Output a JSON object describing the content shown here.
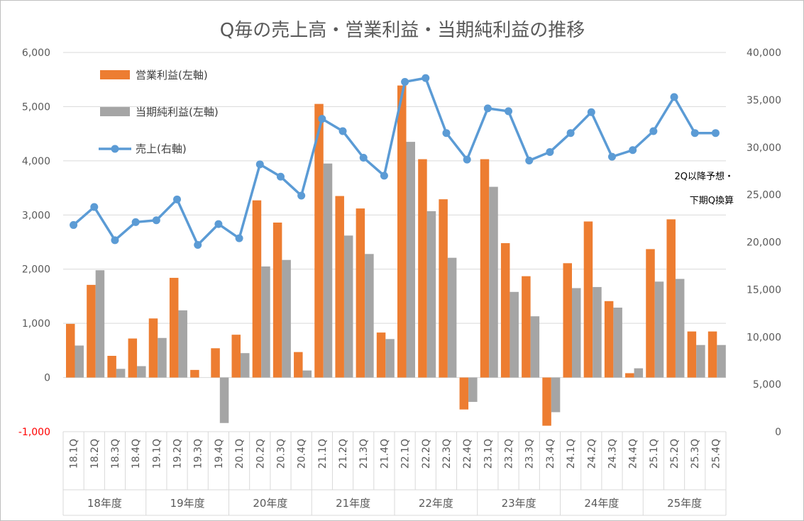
{
  "chart_data": {
    "type": "bar",
    "title": "Q毎の売上高・営業利益・当期純利益の推移",
    "categories": [
      "18.1Q",
      "18.2Q",
      "18.3Q",
      "18.4Q",
      "19.1Q",
      "19.2Q",
      "19.3Q",
      "19.4Q",
      "20.1Q",
      "20.2Q",
      "20.3Q",
      "20.4Q",
      "21.1Q",
      "21.2Q",
      "21.3Q",
      "21.4Q",
      "22.1Q",
      "22.2Q",
      "22.3Q",
      "22.4Q",
      "23.1Q",
      "23.2Q",
      "23.3Q",
      "23.4Q",
      "24.1Q",
      "24.2Q",
      "24.3Q",
      "24.4Q",
      "25.1Q",
      "25.2Q",
      "25.3Q",
      "25.4Q"
    ],
    "year_groups": [
      {
        "label": "18年度",
        "count": 4
      },
      {
        "label": "19年度",
        "count": 4
      },
      {
        "label": "20年度",
        "count": 4
      },
      {
        "label": "21年度",
        "count": 4
      },
      {
        "label": "22年度",
        "count": 4
      },
      {
        "label": "23年度",
        "count": 4
      },
      {
        "label": "24年度",
        "count": 4
      },
      {
        "label": "25年度",
        "count": 4
      }
    ],
    "series": [
      {
        "name": "営業利益(左軸)",
        "type": "bar",
        "axis": "left",
        "color": "#ed7d31",
        "values": [
          990,
          1710,
          400,
          720,
          1090,
          1840,
          140,
          540,
          790,
          3270,
          2860,
          470,
          5050,
          3350,
          3120,
          830,
          5390,
          4030,
          3290,
          -590,
          4030,
          2480,
          1870,
          -890,
          2110,
          2880,
          1410,
          80,
          2370,
          2920,
          850,
          850
        ]
      },
      {
        "name": "当期純利益(左軸)",
        "type": "bar",
        "axis": "left",
        "color": "#a5a5a5",
        "values": [
          590,
          1980,
          160,
          210,
          730,
          1240,
          0,
          -840,
          450,
          2050,
          2170,
          130,
          3950,
          2620,
          2280,
          710,
          4350,
          3070,
          2210,
          -450,
          3520,
          1580,
          1130,
          -640,
          1650,
          1670,
          1290,
          170,
          1770,
          1820,
          600,
          600
        ]
      },
      {
        "name": "売上(右軸)",
        "type": "line",
        "axis": "right",
        "color": "#5b9bd5",
        "values": [
          21800,
          23700,
          20200,
          22100,
          22300,
          24500,
          19700,
          21900,
          20400,
          28200,
          26900,
          24900,
          33000,
          31700,
          28900,
          27000,
          36900,
          37300,
          31500,
          28700,
          34100,
          33800,
          28600,
          29500,
          31500,
          33700,
          29000,
          29700,
          31700,
          35300,
          31500,
          31500
        ]
      }
    ],
    "left_axis": {
      "min": -1000,
      "max": 6000,
      "step": 1000,
      "tick_labels": [
        "-1,000",
        "0",
        "1,000",
        "2,000",
        "3,000",
        "4,000",
        "5,000",
        "6,000"
      ]
    },
    "right_axis": {
      "min": 0,
      "max": 40000,
      "step": 5000,
      "tick_labels": [
        "0",
        "5,000",
        "10,000",
        "15,000",
        "20,000",
        "25,000",
        "30,000",
        "35,000",
        "40,000"
      ]
    },
    "annotation": {
      "line1": "2Q以降予想・",
      "line2": "下期Q換算"
    },
    "legend": {
      "position": "top-left"
    },
    "grid": true
  }
}
